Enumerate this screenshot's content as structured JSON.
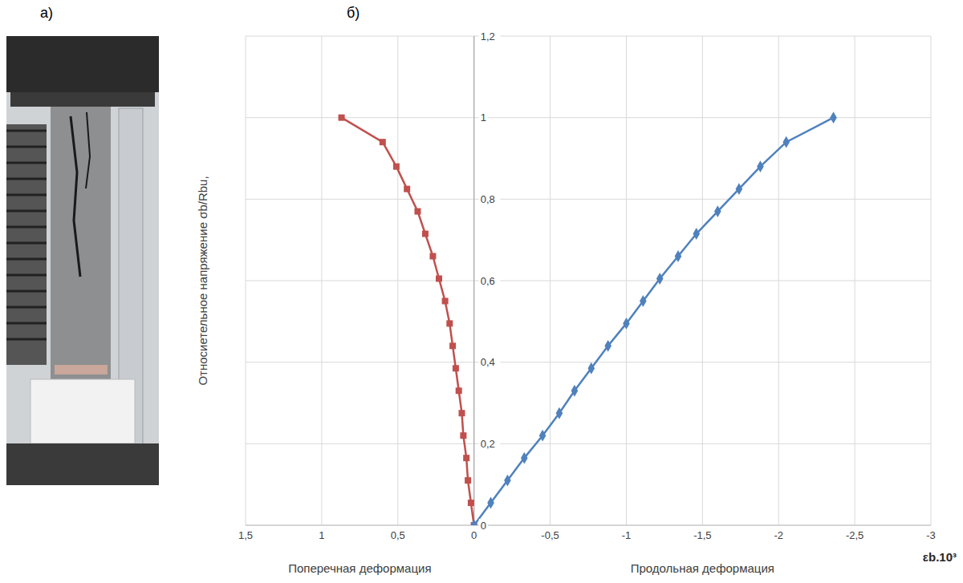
{
  "panels": [
    "а)",
    "б)"
  ],
  "chart_data": {
    "type": "line",
    "y_label": "Относиетельное напряжение σb/Rbu,",
    "x_label": "εb.10³",
    "region_labels": [
      "Поперечная деформация",
      "Продольная деформация"
    ],
    "xlim": [
      1.5,
      -3
    ],
    "xticks": [
      {
        "value": 1.5,
        "label": "1,5"
      },
      1,
      {
        "value": 0.5,
        "label": "0,5"
      },
      0,
      {
        "value": -0.5,
        "label": "-0,5"
      },
      -1,
      {
        "value": -1.5,
        "label": "-1,5"
      },
      -2,
      {
        "value": -2.5,
        "label": "-2,5"
      },
      -3
    ],
    "ylim": [
      0,
      1.2
    ],
    "yticks": [
      0,
      {
        "value": 0.2,
        "label": "0,2"
      },
      {
        "value": 0.4,
        "label": "0,4"
      },
      {
        "value": 0.6,
        "label": "0,6"
      },
      {
        "value": 0.8,
        "label": "0,8"
      },
      1,
      {
        "value": 1.2,
        "label": "1,2"
      }
    ],
    "grid": true,
    "series": [
      {
        "color": "#c0504d",
        "marker": "square",
        "x": [
          0,
          0.02,
          0.04,
          0.05,
          0.07,
          0.08,
          0.1,
          0.12,
          0.14,
          0.16,
          0.19,
          0.23,
          0.27,
          0.32,
          0.37,
          0.44,
          0.51,
          0.6,
          0.87
        ],
        "values": [
          0,
          0.055,
          0.11,
          0.165,
          0.22,
          0.275,
          0.33,
          0.385,
          0.44,
          0.495,
          0.55,
          0.605,
          0.66,
          0.715,
          0.77,
          0.825,
          0.88,
          0.94,
          1.0
        ]
      },
      {
        "color": "#4f81bd",
        "marker": "diamond",
        "x": [
          0,
          -0.11,
          -0.22,
          -0.33,
          -0.45,
          -0.56,
          -0.66,
          -0.77,
          -0.88,
          -1.0,
          -1.11,
          -1.22,
          -1.34,
          -1.46,
          -1.6,
          -1.74,
          -1.88,
          -2.05,
          -2.36
        ],
        "values": [
          0,
          0.055,
          0.11,
          0.165,
          0.22,
          0.275,
          0.33,
          0.385,
          0.44,
          0.495,
          0.55,
          0.605,
          0.66,
          0.715,
          0.77,
          0.825,
          0.88,
          0.94,
          1.0
        ]
      }
    ]
  }
}
